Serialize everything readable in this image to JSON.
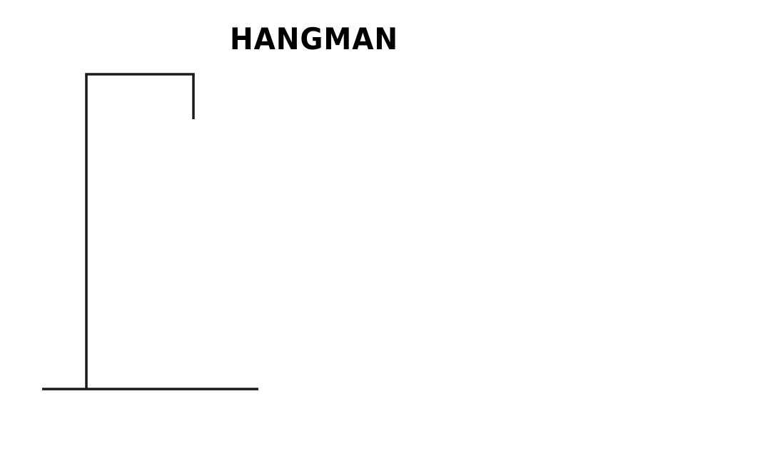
{
  "game": {
    "title": "HANGMAN",
    "ink_color": "#1a1a1a",
    "background_color": "#ffffff"
  }
}
